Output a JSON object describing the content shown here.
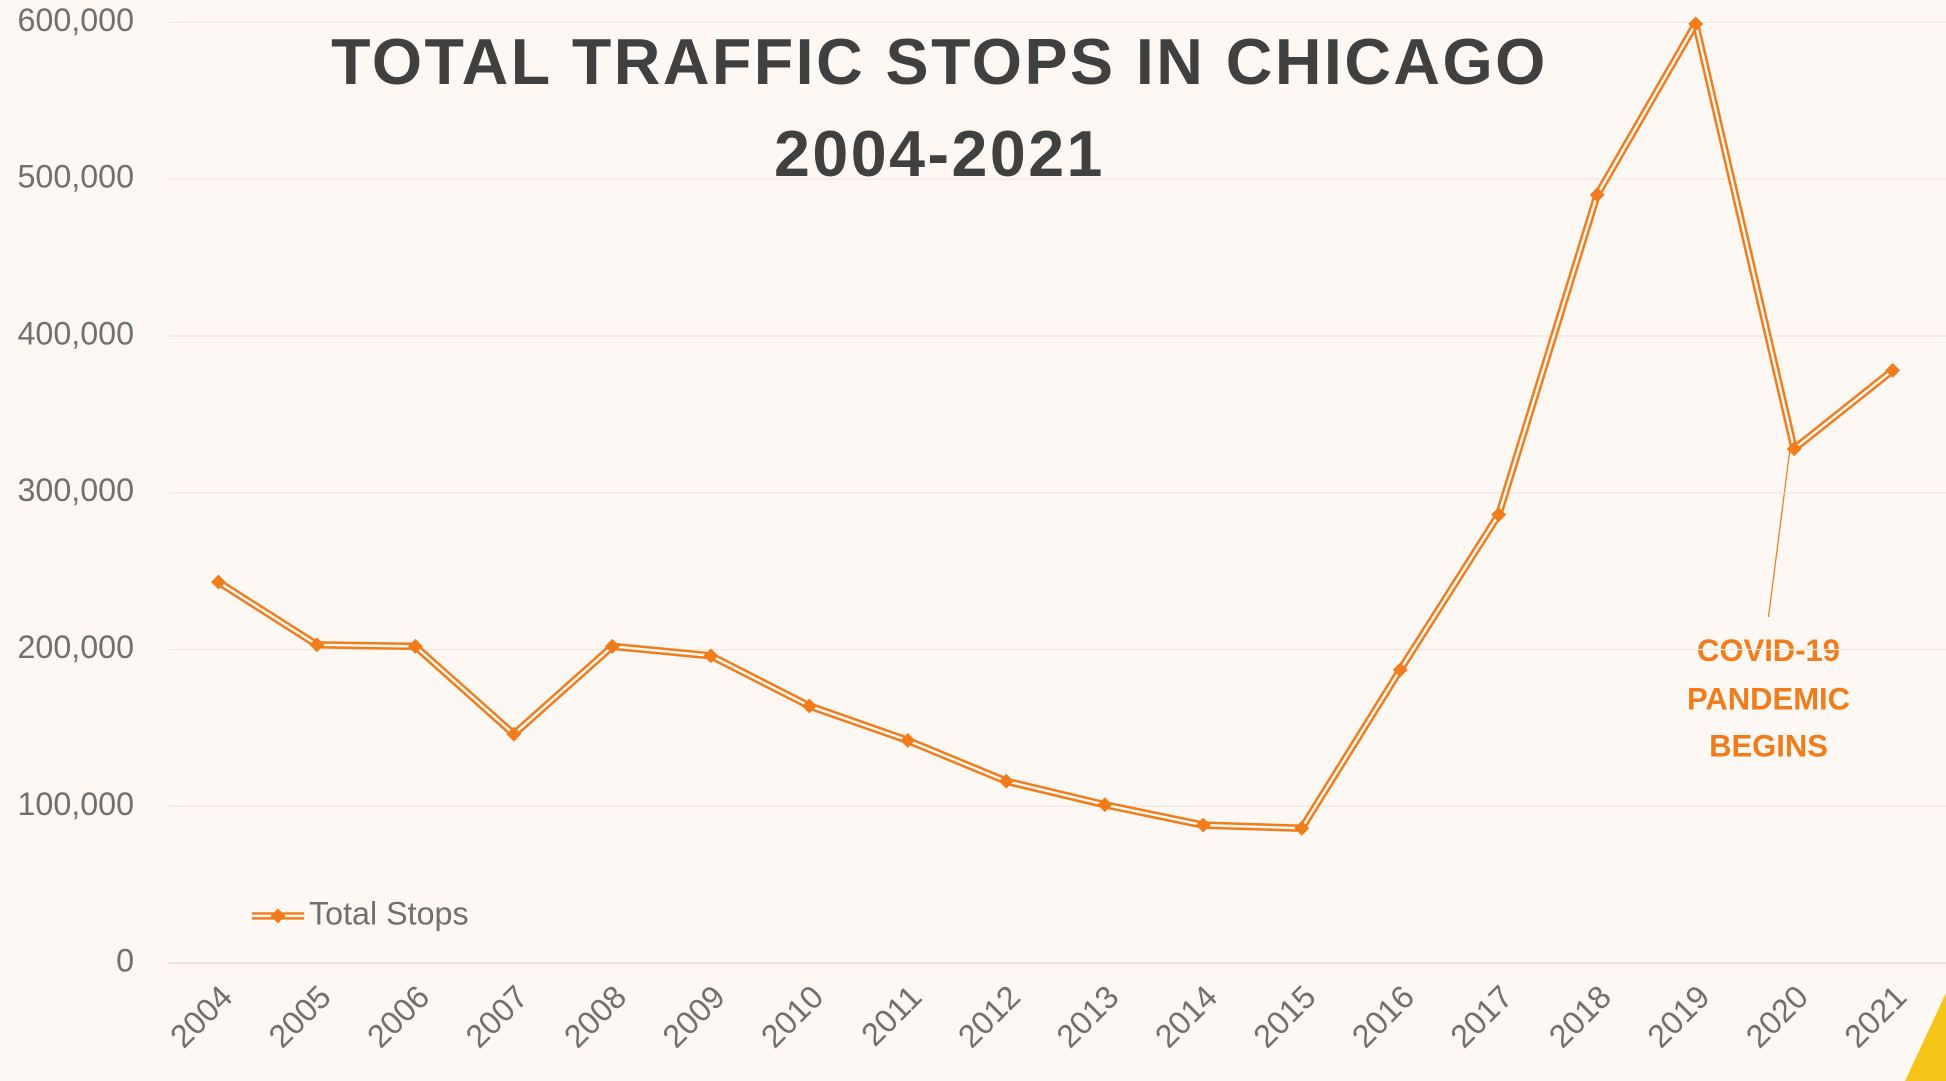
{
  "chart_data": {
    "type": "line",
    "title": [
      "TOTAL TRAFFIC STOPS IN CHICAGO",
      "2004-2021"
    ],
    "categories": [
      "2004",
      "2005",
      "2006",
      "2007",
      "2008",
      "2009",
      "2010",
      "2011",
      "2012",
      "2013",
      "2014",
      "2015",
      "2016",
      "2017",
      "2018",
      "2019",
      "2020",
      "2021"
    ],
    "series": [
      {
        "name": "Total Stops",
        "color": "#f07c1c",
        "values": [
          243000,
          203000,
          202000,
          146000,
          202000,
          196000,
          164000,
          142000,
          116000,
          101000,
          88000,
          86000,
          187000,
          286000,
          490000,
          599000,
          328000,
          378000
        ]
      }
    ],
    "ylim": [
      0,
      600000
    ],
    "yticks": [
      0,
      {
        "value": 100000,
        "label": "100,000"
      },
      {
        "value": 200000,
        "label": "200,000"
      },
      {
        "value": 300000,
        "label": "300,000"
      },
      {
        "value": 400000,
        "label": "400,000"
      },
      {
        "value": 500000,
        "label": "500,000"
      },
      {
        "value": 600000,
        "label": "600,000"
      }
    ],
    "grid": true,
    "legend": "lower left",
    "annotation": [
      "COVID-19",
      "PANDEMIC",
      "BEGINS"
    ]
  }
}
